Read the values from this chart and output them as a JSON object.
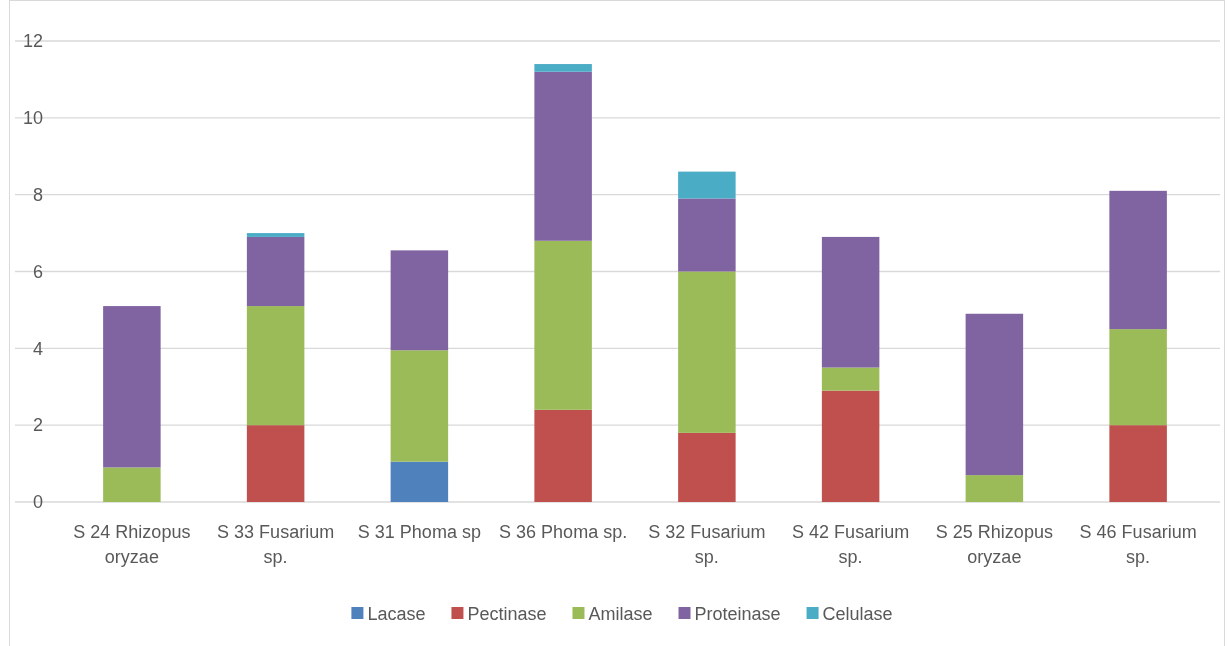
{
  "chart_data": {
    "type": "bar",
    "stacked": true,
    "categories": [
      "S 24 Rhizopus oryzae",
      "S 33 Fusarium sp.",
      "S 31 Phoma sp",
      "S 36 Phoma sp.",
      "S 32 Fusarium sp.",
      "S 42 Fusarium sp.",
      "S 25 Rhizopus oryzae",
      "S 46 Fusarium sp."
    ],
    "series": [
      {
        "name": "Lacase",
        "color": "#4f81bd",
        "values": [
          null,
          null,
          1.05,
          null,
          null,
          null,
          null,
          null
        ]
      },
      {
        "name": "Pectinase",
        "color": "#c0504d",
        "values": [
          null,
          2,
          null,
          2.4,
          1.8,
          2.9,
          null,
          2
        ]
      },
      {
        "name": "Amilase",
        "color": "#9bbb59",
        "values": [
          0.9,
          3.1,
          2.9,
          4.4,
          4.2,
          0.6,
          0.7,
          2.5
        ]
      },
      {
        "name": "Proteinase",
        "color": "#8064a2",
        "values": [
          4.2,
          1.8,
          2.6,
          4.4,
          1.9,
          3.4,
          4.2,
          3.6
        ]
      },
      {
        "name": "Celulase",
        "color": "#4bacc6",
        "values": [
          null,
          0.1,
          null,
          0.2,
          0.7,
          null,
          null,
          null
        ]
      }
    ],
    "ylim": [
      0,
      12
    ],
    "yticks": [
      0,
      2,
      4,
      6,
      8,
      10,
      12
    ],
    "grid": "y",
    "legend": "bottom"
  }
}
